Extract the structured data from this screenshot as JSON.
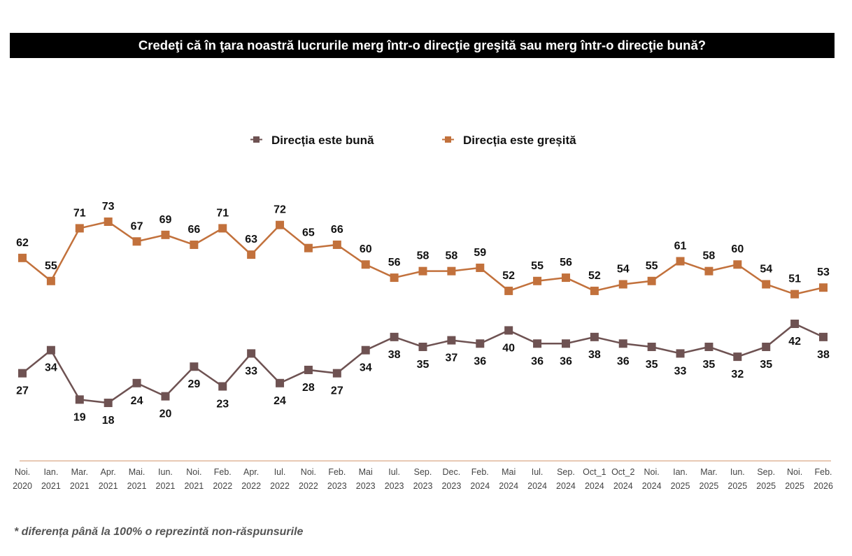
{
  "chart_data": {
    "type": "line",
    "title": "Credeţi că în ţara noastră lucrurile merg într-o direcţie greşită sau merg într-o direcţie bună?",
    "footnote": "* diferența până la 100% o reprezintă non-răspunsurile",
    "categories": [
      [
        "Noi.",
        "2020"
      ],
      [
        "Ian.",
        "2021"
      ],
      [
        "Mar.",
        "2021"
      ],
      [
        "Apr.",
        "2021"
      ],
      [
        "Mai.",
        "2021"
      ],
      [
        "Iun.",
        "2021"
      ],
      [
        "Noi.",
        "2021"
      ],
      [
        "Feb.",
        "2022"
      ],
      [
        "Apr.",
        "2022"
      ],
      [
        "Iul.",
        "2022"
      ],
      [
        "Noi.",
        "2022"
      ],
      [
        "Feb.",
        "2023"
      ],
      [
        "Mai",
        "2023"
      ],
      [
        "Iul.",
        "2023"
      ],
      [
        "Sep.",
        "2023"
      ],
      [
        "Dec.",
        "2023"
      ],
      [
        "Feb.",
        "2024"
      ],
      [
        "Mai",
        "2024"
      ],
      [
        "Iul.",
        "2024"
      ],
      [
        "Sep.",
        "2024"
      ],
      [
        "Oct_1",
        "2024"
      ],
      [
        "Oct_2",
        "2024"
      ],
      [
        "Noi.",
        "2024"
      ],
      [
        "Ian.",
        "2025"
      ],
      [
        "Mar.",
        "2025"
      ],
      [
        "Iun.",
        "2025"
      ],
      [
        "Sep.",
        "2025"
      ],
      [
        "Noi.",
        "2025"
      ],
      [
        "Feb.",
        "2026"
      ]
    ],
    "series": [
      {
        "name": "Direcția este bună",
        "color": "#6e5252",
        "label_position": "below",
        "values": [
          27,
          34,
          19,
          18,
          24,
          20,
          29,
          23,
          33,
          24,
          28,
          27,
          34,
          38,
          35,
          37,
          36,
          40,
          36,
          36,
          38,
          36,
          35,
          33,
          35,
          32,
          35,
          42,
          38
        ]
      },
      {
        "name": "Direcția este greșită",
        "color": "#c2713c",
        "label_position": "above",
        "values": [
          62,
          55,
          71,
          73,
          67,
          69,
          66,
          71,
          63,
          72,
          65,
          66,
          60,
          56,
          58,
          58,
          59,
          52,
          55,
          56,
          52,
          54,
          55,
          61,
          58,
          60,
          54,
          51,
          53
        ]
      }
    ],
    "legend_position": "top-center",
    "grid": false,
    "axis_color": "#e8c9b4",
    "marker": "square"
  }
}
